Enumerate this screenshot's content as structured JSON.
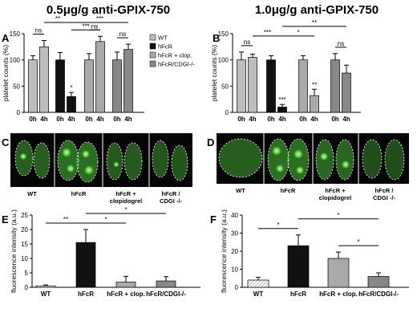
{
  "figure": {
    "titles": {
      "left": "0.5μg/g anti-GPIX-750",
      "right": "1.0μg/g anti-GPIX-750"
    },
    "panel_labels": {
      "A": "A",
      "B": "B",
      "C": "C",
      "D": "D",
      "E": "E",
      "F": "F"
    },
    "legend": [
      {
        "label": "WT",
        "color": "#bdbdbd"
      },
      {
        "label": "hFcR",
        "color": "#111111"
      },
      {
        "label": "hFcR + clop.",
        "color": "#a9a9a9"
      },
      {
        "label": "hFcR/CDGI-/-",
        "color": "#888888"
      }
    ],
    "images": {
      "C": {
        "captions": [
          "WT",
          "hFcR",
          "hFcR +\nclopidogrel",
          "hFcR /\nCDGI -/-"
        ]
      },
      "D": {
        "captions": [
          "WT",
          "hFcR",
          "hFcR +\nclopidogrel",
          "hFcR /\nCDGI -/-"
        ]
      }
    }
  },
  "chart_data": [
    {
      "id": "A",
      "type": "bar",
      "ylabel": "platelet counts (%)",
      "ylim": [
        0,
        150
      ],
      "yticks": [
        0,
        50,
        100,
        150
      ],
      "categories": [
        "0h",
        "4h",
        "0h",
        "4h",
        "0h",
        "4h",
        "0h",
        "4h"
      ],
      "groups": [
        "WT",
        "hFcR",
        "hFcR + clop.",
        "hFcR/CDGI-/-"
      ],
      "values": [
        100,
        125,
        100,
        30,
        100,
        135,
        100,
        120
      ],
      "errors": [
        8,
        12,
        14,
        8,
        12,
        10,
        15,
        10
      ],
      "colors": [
        "#bdbdbd",
        "#bdbdbd",
        "#111111",
        "#111111",
        "#a9a9a9",
        "#a9a9a9",
        "#888888",
        "#888888"
      ],
      "bar_marks": [
        {
          "bar": 3,
          "text": "*"
        }
      ],
      "brackets": [
        {
          "from": 0,
          "to": 1,
          "text": "ns",
          "level": 1
        },
        {
          "from": 1,
          "to": 3,
          "text": "**",
          "level": 2
        },
        {
          "from": 3,
          "to": 5,
          "text": "***",
          "level": 1
        },
        {
          "from": 4,
          "to": 5,
          "text": "ns",
          "level": 1
        },
        {
          "from": 6,
          "to": 7,
          "text": "ns",
          "level": 1
        },
        {
          "from": 3,
          "to": 7,
          "text": "***",
          "level": 3
        }
      ]
    },
    {
      "id": "B",
      "type": "bar",
      "ylabel": "platelet counts (%)",
      "ylim": [
        0,
        150
      ],
      "yticks": [
        0,
        50,
        100,
        150
      ],
      "categories": [
        "0h",
        "4h",
        "0h",
        "4h",
        "0h",
        "4h",
        "0h",
        "4h"
      ],
      "groups": [
        "WT",
        "hFcR",
        "hFcR + clop.",
        "hFcR/CDGI-/-"
      ],
      "values": [
        100,
        105,
        100,
        10,
        100,
        32,
        100,
        75
      ],
      "errors": [
        15,
        6,
        8,
        5,
        8,
        12,
        12,
        15
      ],
      "colors": [
        "#bdbdbd",
        "#bdbdbd",
        "#111111",
        "#111111",
        "#a9a9a9",
        "#a9a9a9",
        "#888888",
        "#888888"
      ],
      "bar_marks": [
        {
          "bar": 3,
          "text": "***"
        },
        {
          "bar": 5,
          "text": "**"
        }
      ],
      "brackets": [
        {
          "from": 0,
          "to": 1,
          "text": "ns",
          "level": 1
        },
        {
          "from": 1,
          "to": 3,
          "text": "***",
          "level": 2
        },
        {
          "from": 3,
          "to": 5,
          "text": "*",
          "level": 2
        },
        {
          "from": 6,
          "to": 7,
          "text": "ns",
          "level": 1
        },
        {
          "from": 3,
          "to": 7,
          "text": "**",
          "level": 3
        }
      ]
    },
    {
      "id": "E",
      "type": "bar",
      "ylabel": "fluorescence intensity (a.u.)",
      "ylim": [
        0,
        25
      ],
      "yticks": [
        0,
        5,
        10,
        15,
        20,
        25
      ],
      "categories": [
        "WT",
        "hFcR",
        "hFcR + clop.",
        "hFcR/CDGI-/-"
      ],
      "values": [
        0.5,
        15.5,
        1.8,
        2.2
      ],
      "errors": [
        0.3,
        4.5,
        2.0,
        1.5
      ],
      "colors": [
        "#ffffff",
        "#111111",
        "#a9a9a9",
        "#888888"
      ],
      "brackets": [
        {
          "from": 0,
          "to": 1,
          "text": "**",
          "level": 1
        },
        {
          "from": 1,
          "to": 2,
          "text": "*",
          "level": 1
        },
        {
          "from": 1,
          "to": 3,
          "text": "*",
          "level": 2
        }
      ]
    },
    {
      "id": "F",
      "type": "bar",
      "ylabel": "fluorescence intensity (a.u.)",
      "ylim": [
        0,
        40
      ],
      "yticks": [
        0,
        10,
        20,
        30,
        40
      ],
      "categories": [
        "WT",
        "hFcR",
        "hFcR + clop.",
        "hFcR/CDGI-/-"
      ],
      "values": [
        4,
        23,
        16,
        6
      ],
      "errors": [
        1.5,
        6,
        3.5,
        2
      ],
      "colors": [
        "#ffffff",
        "#111111",
        "#a9a9a9",
        "#888888"
      ],
      "brackets": [
        {
          "from": 0,
          "to": 1,
          "text": "*",
          "level": 1
        },
        {
          "from": 2,
          "to": 3,
          "text": "*",
          "level": 1
        },
        {
          "from": 1,
          "to": 3,
          "text": "*",
          "level": 2
        }
      ]
    }
  ]
}
